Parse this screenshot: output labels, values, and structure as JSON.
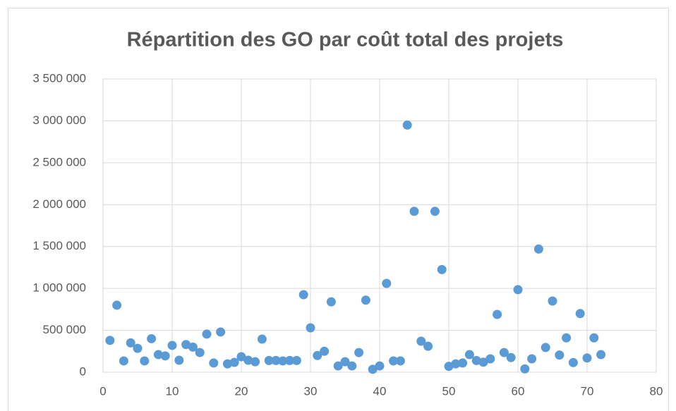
{
  "chart_data": {
    "type": "scatter",
    "title": "Répartition des GO par coût total des projets",
    "color": "#5b9bd5",
    "grid": true,
    "x": [
      1,
      2,
      3,
      4,
      5,
      6,
      7,
      8,
      9,
      10,
      11,
      12,
      13,
      14,
      15,
      16,
      17,
      18,
      19,
      20,
      21,
      22,
      23,
      24,
      25,
      26,
      27,
      28,
      29,
      30,
      31,
      32,
      33,
      34,
      35,
      36,
      37,
      38,
      39,
      40,
      41,
      42,
      43,
      44,
      45,
      46,
      47,
      48,
      49,
      50,
      51,
      52,
      53,
      54,
      55,
      56,
      57,
      58,
      59,
      60,
      61,
      62,
      63,
      64,
      65,
      66,
      67,
      68,
      69,
      70,
      71,
      72
    ],
    "values": [
      380000,
      800000,
      135000,
      350000,
      285000,
      135000,
      400000,
      210000,
      195000,
      320000,
      143000,
      330000,
      300000,
      235000,
      455000,
      110000,
      480000,
      100000,
      118000,
      185000,
      143000,
      125000,
      395000,
      140000,
      140000,
      135000,
      140000,
      140000,
      925000,
      530000,
      200000,
      250000,
      840000,
      75000,
      125000,
      75000,
      235000,
      860000,
      35000,
      75000,
      1060000,
      135000,
      135000,
      2950000,
      1920000,
      370000,
      310000,
      1920000,
      1225000,
      70000,
      100000,
      110000,
      210000,
      140000,
      120000,
      160000,
      690000,
      235000,
      175000,
      985000,
      40000,
      160000,
      1470000,
      295000,
      850000,
      205000,
      410000,
      115000,
      700000,
      170000,
      410000,
      210000
    ],
    "xlim": [
      0,
      80
    ],
    "xticks": [
      0,
      10,
      20,
      30,
      40,
      50,
      60,
      70,
      80
    ],
    "ylim": [
      0,
      3500000
    ],
    "yticks": [
      0,
      {
        "value": 500000,
        "label": "500 000"
      },
      {
        "value": 1000000,
        "label": "1 000 000"
      },
      {
        "value": 1500000,
        "label": "1 500 000"
      },
      {
        "value": 2000000,
        "label": "2 000 000"
      },
      {
        "value": 2500000,
        "label": "2 500 000"
      },
      {
        "value": 3000000,
        "label": "3 000 000"
      },
      {
        "value": 3500000,
        "label": "3 500 000"
      }
    ]
  }
}
